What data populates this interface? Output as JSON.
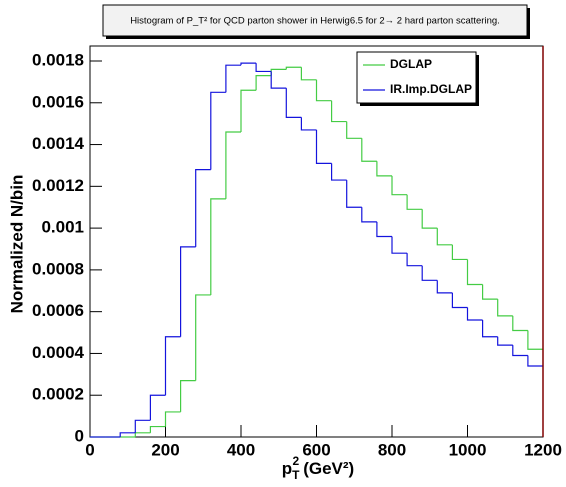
{
  "chart_data": {
    "type": "histogram",
    "title": "Histogram of P_T² for QCD parton shower in Herwig6.5 for 2→ 2 hard parton scattering.",
    "x_label": {
      "base": "p",
      "sub": "T",
      "sup": "2",
      "unit": "(GeV²)"
    },
    "y_label": "Normalized N/bin",
    "bins": [
      0,
      40,
      80,
      120,
      160,
      200,
      240,
      280,
      320,
      360,
      400,
      440,
      480,
      520,
      560,
      600,
      640,
      680,
      720,
      760,
      800,
      840,
      880,
      920,
      960,
      1000,
      1040,
      1080,
      1120,
      1160,
      1200
    ],
    "series": [
      {
        "name": "DGLAP",
        "color": "#44cc44",
        "values": [
          0,
          0,
          0,
          2e-05,
          5e-05,
          0.00012,
          0.00027,
          0.00068,
          0.00114,
          0.00146,
          0.00166,
          0.00173,
          0.00176,
          0.00177,
          0.00171,
          0.00161,
          0.00151,
          0.00143,
          0.00132,
          0.00125,
          0.00116,
          0.00109,
          0.001,
          0.00092,
          0.00085,
          0.00073,
          0.00066,
          0.00058,
          0.00051,
          0.00042
        ]
      },
      {
        "name": "IR.Imp.DGLAP",
        "color": "#1414dd",
        "values": [
          0,
          0,
          2e-05,
          8e-05,
          0.0002,
          0.00048,
          0.00091,
          0.00128,
          0.00165,
          0.00178,
          0.00179,
          0.00175,
          0.00167,
          0.00153,
          0.00147,
          0.00131,
          0.00123,
          0.0011,
          0.00103,
          0.00096,
          0.00088,
          0.00082,
          0.00075,
          0.00069,
          0.00062,
          0.00056,
          0.00048,
          0.00044,
          0.00039,
          0.00034
        ]
      }
    ],
    "xlim": [
      0,
      1200
    ],
    "xticks": [
      0,
      200,
      400,
      600,
      800,
      1000,
      1200
    ],
    "ylim": [
      0,
      0.0018
    ],
    "yticks": [
      0,
      0.0002,
      0.0004,
      0.0006,
      0.0008,
      0.001,
      0.0012,
      0.0014,
      0.0016,
      0.0018
    ],
    "grid": false,
    "legend": "top-right"
  }
}
